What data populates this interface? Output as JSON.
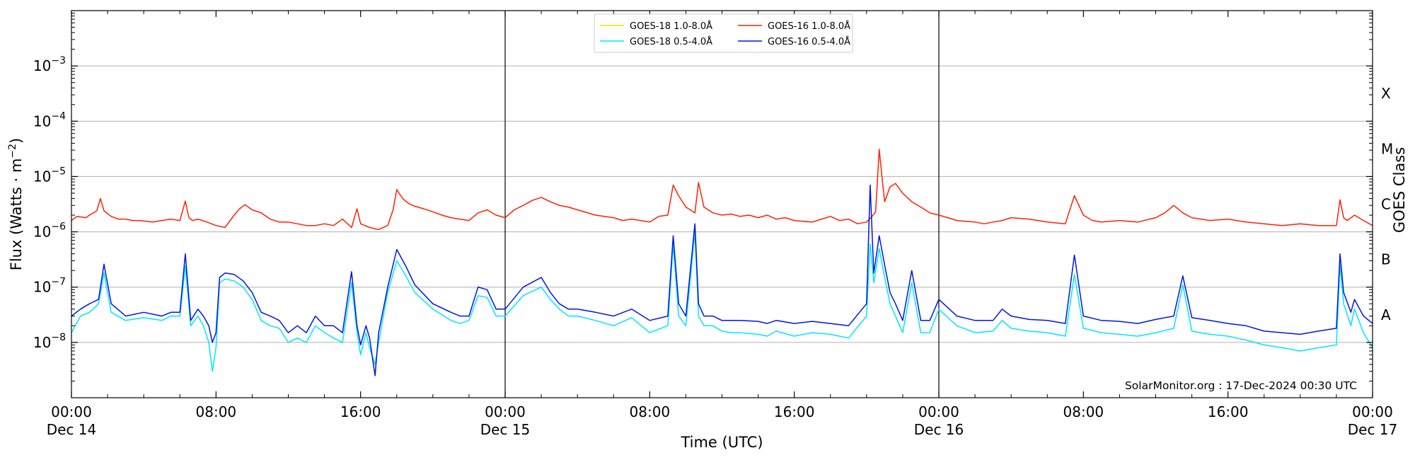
{
  "chart_data": {
    "type": "line",
    "title": "",
    "xlabel": "Time (UTC)",
    "ylabel": "Flux (Watts · m",
    "ylabel_sup": "−2",
    "ylabel_tail": ")",
    "y2label": "GOES Class",
    "yscale": "log",
    "ylim": [
      1e-09,
      0.01
    ],
    "xlim_hours": [
      0,
      72
    ],
    "grid": "horizontal at decades",
    "legend_placement": "top-center",
    "annotation": "SolarMonitor.org : 17-Dec-2024 00:30 UTC",
    "yticks": [
      {
        "value": 1e-08,
        "base": "10",
        "exp": "−8"
      },
      {
        "value": 1e-07,
        "base": "10",
        "exp": "−7"
      },
      {
        "value": 1e-06,
        "base": "10",
        "exp": "−6"
      },
      {
        "value": 1e-05,
        "base": "10",
        "exp": "−5"
      },
      {
        "value": 0.0001,
        "base": "10",
        "exp": "−4"
      },
      {
        "value": 0.001,
        "base": "10",
        "exp": "−3"
      }
    ],
    "goes_classes": [
      {
        "label": "A",
        "value": 3.16e-08
      },
      {
        "label": "B",
        "value": 3.16e-07
      },
      {
        "label": "C",
        "value": 3.16e-06
      },
      {
        "label": "M",
        "value": 3.16e-05
      },
      {
        "label": "X",
        "value": 0.000316
      }
    ],
    "xticks": [
      {
        "hour": 0,
        "time": "00:00",
        "date": "Dec 14"
      },
      {
        "hour": 8,
        "time": "08:00",
        "date": ""
      },
      {
        "hour": 16,
        "time": "16:00",
        "date": ""
      },
      {
        "hour": 24,
        "time": "00:00",
        "date": "Dec 15"
      },
      {
        "hour": 32,
        "time": "08:00",
        "date": ""
      },
      {
        "hour": 40,
        "time": "16:00",
        "date": ""
      },
      {
        "hour": 48,
        "time": "00:00",
        "date": "Dec 16"
      },
      {
        "hour": 56,
        "time": "08:00",
        "date": ""
      },
      {
        "hour": 64,
        "time": "16:00",
        "date": ""
      },
      {
        "hour": 72,
        "time": "00:00",
        "date": "Dec 17"
      }
    ],
    "day_boundaries_hours": [
      24,
      48
    ],
    "series": [
      {
        "name": "GOES-18 1.0-8.0Å",
        "color": "#ffd700",
        "hours": [],
        "values": []
      },
      {
        "name": "GOES-16 1.0-8.0Å",
        "color": "#ff2000",
        "hours": [
          0,
          0.3,
          0.8,
          1,
          1.4,
          1.6,
          1.8,
          2.2,
          2.6,
          3,
          3.4,
          3.8,
          4.5,
          5,
          5.5,
          6,
          6.3,
          6.5,
          6.7,
          7,
          7.5,
          8,
          8.5,
          9,
          9.3,
          9.6,
          10,
          10.5,
          11,
          11.5,
          12,
          12.5,
          13,
          13.5,
          14,
          14.5,
          15,
          15.5,
          15.8,
          16,
          16.5,
          17,
          17.5,
          17.8,
          18,
          18.2,
          18.4,
          18.7,
          19,
          19.5,
          20,
          20.5,
          21,
          21.5,
          22,
          22.5,
          23,
          23.5,
          24,
          24.5,
          25,
          25.5,
          26,
          26.5,
          27,
          27.5,
          28,
          29,
          30,
          30.5,
          31,
          31.5,
          32,
          32.5,
          33,
          33.3,
          33.6,
          34,
          34.5,
          34.7,
          35,
          35.5,
          36,
          36.5,
          37,
          37.5,
          38,
          38.5,
          39,
          39.5,
          40,
          41,
          41.5,
          42,
          42.5,
          43,
          43.5,
          44,
          44.3,
          44.5,
          44.7,
          44.9,
          45,
          45.3,
          45.6,
          46,
          46.5,
          47,
          47.5,
          48,
          48.5,
          49,
          50,
          50.5,
          51,
          51.5,
          52,
          53,
          54,
          55,
          55.5,
          56,
          56.5,
          57,
          58,
          59,
          60,
          60.5,
          61,
          61.5,
          62,
          63,
          64,
          65,
          66,
          67,
          68,
          69,
          70,
          70.2,
          70.4,
          70.6,
          71,
          71.5,
          72
        ],
        "values": [
          1.6e-06,
          1.9e-06,
          1.8e-06,
          2e-06,
          2.4e-06,
          4e-06,
          2.4e-06,
          1.9e-06,
          1.7e-06,
          1.7e-06,
          1.6e-06,
          1.6e-06,
          1.5e-06,
          1.6e-06,
          1.7e-06,
          1.6e-06,
          3.6e-06,
          1.8e-06,
          1.6e-06,
          1.7e-06,
          1.5e-06,
          1.3e-06,
          1.2e-06,
          2e-06,
          2.6e-06,
          3.1e-06,
          2.5e-06,
          2.2e-06,
          1.7e-06,
          1.5e-06,
          1.5e-06,
          1.4e-06,
          1.3e-06,
          1.3e-06,
          1.4e-06,
          1.3e-06,
          1.7e-06,
          1.2e-06,
          2.6e-06,
          1.4e-06,
          1.2e-06,
          1.1e-06,
          1.3e-06,
          2.5e-06,
          5.8e-06,
          4.6e-06,
          3.8e-06,
          3.2e-06,
          2.9e-06,
          2.6e-06,
          2.3e-06,
          2e-06,
          1.8e-06,
          1.7e-06,
          1.6e-06,
          2.2e-06,
          2.5e-06,
          2e-06,
          1.8e-06,
          2.5e-06,
          3e-06,
          3.7e-06,
          4.2e-06,
          3.5e-06,
          3e-06,
          2.8e-06,
          2.5e-06,
          2e-06,
          1.8e-06,
          1.6e-06,
          1.7e-06,
          1.6e-06,
          1.5e-06,
          1.9e-06,
          2e-06,
          7e-06,
          4.5e-06,
          2.8e-06,
          2.2e-06,
          7.8e-06,
          2.8e-06,
          2.2e-06,
          2e-06,
          2.1e-06,
          1.9e-06,
          2e-06,
          1.8e-06,
          2e-06,
          1.7e-06,
          1.8e-06,
          1.6e-06,
          1.5e-06,
          1.7e-06,
          1.9e-06,
          1.6e-06,
          1.7e-06,
          1.4e-06,
          1.5e-06,
          1.9e-06,
          2.3e-06,
          3.1e-05,
          7e-06,
          3.5e-06,
          6.5e-06,
          7.5e-06,
          5e-06,
          3.5e-06,
          2.8e-06,
          2.2e-06,
          2e-06,
          1.8e-06,
          1.6e-06,
          1.5e-06,
          1.4e-06,
          1.5e-06,
          1.6e-06,
          1.8e-06,
          1.7e-06,
          1.5e-06,
          1.4e-06,
          4.5e-06,
          2e-06,
          1.6e-06,
          1.5e-06,
          1.6e-06,
          1.5e-06,
          1.8e-06,
          2.2e-06,
          3e-06,
          2.2e-06,
          1.8e-06,
          1.6e-06,
          1.7e-06,
          1.5e-06,
          1.4e-06,
          1.3e-06,
          1.4e-06,
          1.3e-06,
          1.3e-06,
          3.8e-06,
          1.8e-06,
          1.6e-06,
          2e-06,
          1.6e-06,
          1.3e-06
        ]
      },
      {
        "name": "GOES-18 0.5-4.0Å",
        "color": "#00e5ff",
        "hours": [
          0,
          0.5,
          1,
          1.5,
          1.8,
          2.2,
          3,
          4,
          5,
          5.5,
          6,
          6.3,
          6.6,
          7,
          7.3,
          7.6,
          7.8,
          8,
          8.2,
          8.5,
          9,
          9.5,
          10,
          10.5,
          11,
          11.5,
          12,
          12.5,
          13,
          13.5,
          14,
          14.5,
          15,
          15.5,
          15.8,
          16,
          16.3,
          16.5,
          16.8,
          17,
          17.5,
          18,
          18.5,
          19,
          20,
          21,
          21.5,
          22,
          22.5,
          23,
          23.5,
          24,
          25,
          26,
          26.5,
          27,
          27.5,
          28,
          29,
          30,
          31,
          32,
          33,
          33.3,
          33.6,
          34,
          34.5,
          34.7,
          35,
          35.5,
          36,
          36.5,
          37,
          38,
          38.5,
          39,
          40,
          41,
          42,
          43,
          44,
          44.2,
          44.4,
          44.7,
          45,
          45.3,
          45.6,
          46,
          46.5,
          47,
          47.5,
          48,
          49,
          50,
          51,
          51.5,
          52,
          53,
          54,
          55,
          55.5,
          56,
          57,
          58,
          59,
          60,
          61,
          61.5,
          62,
          63,
          64,
          65,
          66,
          67,
          68,
          69,
          70,
          70.2,
          70.4,
          70.8,
          71,
          71.5,
          72
        ],
        "values": [
          1.5e-08,
          3e-08,
          3.5e-08,
          5e-08,
          1.8e-07,
          3.5e-08,
          2.5e-08,
          2.8e-08,
          2.5e-08,
          3e-08,
          3e-08,
          2.4e-07,
          2e-08,
          3e-08,
          2e-08,
          1e-08,
          3e-09,
          8e-09,
          1.2e-07,
          1.4e-07,
          1.3e-07,
          1e-07,
          6e-08,
          2.5e-08,
          2e-08,
          1.8e-08,
          1e-08,
          1.2e-08,
          1e-08,
          2e-08,
          1.5e-08,
          1.2e-08,
          1e-08,
          1.2e-07,
          1.5e-08,
          6e-09,
          1.5e-08,
          8e-09,
          4e-09,
          1e-08,
          8e-08,
          3e-07,
          1.6e-07,
          8e-08,
          4e-08,
          2.5e-08,
          2.2e-08,
          2.5e-08,
          7e-08,
          6.5e-08,
          3e-08,
          3e-08,
          7e-08,
          1e-07,
          6e-08,
          4e-08,
          3e-08,
          3e-08,
          2.5e-08,
          2e-08,
          2.8e-08,
          1.5e-08,
          2e-08,
          6e-07,
          3e-08,
          2e-08,
          1e-06,
          3e-08,
          2e-08,
          2e-08,
          1.6e-08,
          1.5e-08,
          1.5e-08,
          1.4e-08,
          1.3e-08,
          1.6e-08,
          1.3e-08,
          1.5e-08,
          1.4e-08,
          1.2e-08,
          3e-08,
          6e-07,
          1.2e-07,
          5e-07,
          1.5e-07,
          5e-08,
          3e-08,
          1.5e-08,
          1.2e-07,
          1.5e-08,
          1.5e-08,
          4e-08,
          2e-08,
          1.5e-08,
          1.6e-08,
          2.5e-08,
          1.8e-08,
          1.6e-08,
          1.5e-08,
          1.3e-08,
          1.7e-07,
          1.8e-08,
          1.5e-08,
          1.4e-08,
          1.3e-08,
          1.5e-08,
          1.8e-08,
          1.1e-07,
          1.6e-08,
          1.4e-08,
          1.3e-08,
          1.1e-08,
          9e-09,
          8e-09,
          7e-09,
          8e-09,
          9e-09,
          2.5e-07,
          5e-08,
          2e-08,
          4e-08,
          1.5e-08,
          8e-09
        ]
      },
      {
        "name": "GOES-16 0.5-4.0Å",
        "color": "#0016e0",
        "hours": [
          0,
          0.5,
          1,
          1.5,
          1.8,
          2.2,
          3,
          4,
          5,
          5.5,
          6,
          6.3,
          6.6,
          7,
          7.3,
          7.6,
          7.8,
          8,
          8.2,
          8.5,
          9,
          9.5,
          10,
          10.5,
          11,
          11.5,
          12,
          12.5,
          13,
          13.5,
          14,
          14.5,
          15,
          15.5,
          15.8,
          16,
          16.3,
          16.5,
          16.8,
          17,
          17.5,
          18,
          18.5,
          19,
          20,
          21,
          21.5,
          22,
          22.5,
          23,
          23.5,
          24,
          25,
          26,
          26.5,
          27,
          27.5,
          28,
          29,
          30,
          31,
          32,
          33,
          33.3,
          33.6,
          34,
          34.5,
          34.7,
          35,
          35.5,
          36,
          36.5,
          37,
          38,
          38.5,
          39,
          40,
          41,
          42,
          43,
          44,
          44.2,
          44.4,
          44.7,
          45,
          45.3,
          45.6,
          46,
          46.5,
          47,
          47.5,
          48,
          49,
          50,
          51,
          51.5,
          52,
          53,
          54,
          55,
          55.5,
          56,
          57,
          58,
          59,
          60,
          61,
          61.5,
          62,
          63,
          64,
          65,
          66,
          67,
          68,
          69,
          70,
          70.2,
          70.4,
          70.8,
          71,
          71.5,
          72
        ],
        "values": [
          3e-08,
          4e-08,
          5e-08,
          6e-08,
          2.6e-07,
          5e-08,
          3e-08,
          3.5e-08,
          3e-08,
          3.5e-08,
          3.5e-08,
          4e-07,
          2.5e-08,
          4e-08,
          3e-08,
          2e-08,
          1e-08,
          1.5e-08,
          1.5e-07,
          1.8e-07,
          1.7e-07,
          1.3e-07,
          8e-08,
          3.5e-08,
          3e-08,
          2.5e-08,
          1.5e-08,
          2e-08,
          1.5e-08,
          3e-08,
          2e-08,
          2e-08,
          1.5e-08,
          1.9e-07,
          2e-08,
          9e-09,
          2e-08,
          1.2e-08,
          2.5e-09,
          1.5e-08,
          1e-07,
          4.8e-07,
          2.4e-07,
          1.1e-07,
          5e-08,
          3.5e-08,
          3e-08,
          3e-08,
          1e-07,
          9e-08,
          4e-08,
          4e-08,
          1e-07,
          1.5e-07,
          8e-08,
          5e-08,
          4e-08,
          4e-08,
          3.5e-08,
          3e-08,
          4e-08,
          2.5e-08,
          3e-08,
          8.5e-07,
          5e-08,
          3e-08,
          1.4e-06,
          5e-08,
          3e-08,
          3e-08,
          2.5e-08,
          2.5e-08,
          2.5e-08,
          2.4e-08,
          2.2e-08,
          2.5e-08,
          2.2e-08,
          2.4e-08,
          2.2e-08,
          2e-08,
          5e-08,
          7e-06,
          1.8e-07,
          8.5e-07,
          2.5e-07,
          8e-08,
          5e-08,
          2.5e-08,
          2e-07,
          2.5e-08,
          2.5e-08,
          6e-08,
          3e-08,
          2.5e-08,
          2.5e-08,
          4e-08,
          3e-08,
          2.6e-08,
          2.5e-08,
          2.2e-08,
          3.8e-07,
          3e-08,
          2.5e-08,
          2.4e-08,
          2.2e-08,
          2.6e-08,
          3e-08,
          1.6e-07,
          2.8e-08,
          2.5e-08,
          2.2e-08,
          2e-08,
          1.6e-08,
          1.5e-08,
          1.4e-08,
          1.6e-08,
          1.8e-08,
          4e-07,
          8e-08,
          3.5e-08,
          6e-08,
          3e-08,
          2.2e-08
        ]
      }
    ]
  }
}
